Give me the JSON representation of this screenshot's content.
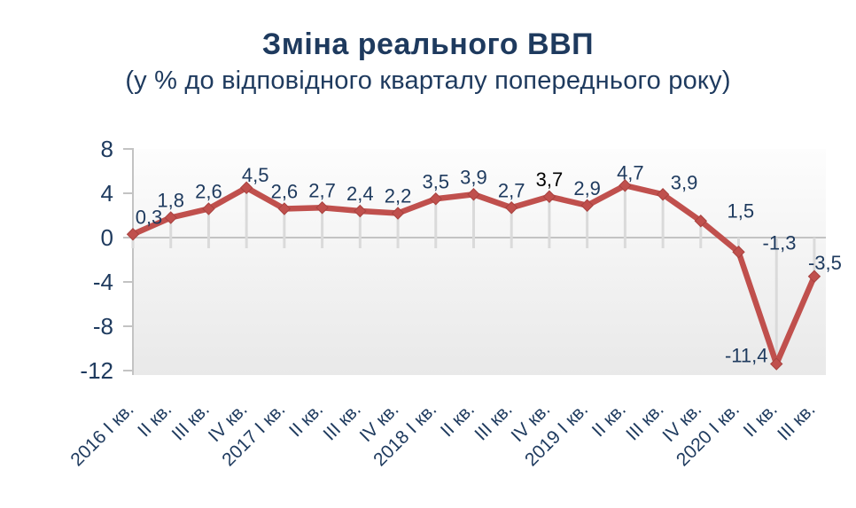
{
  "header": {
    "title": "Зміна реального ВВП",
    "subtitle": "(у % до відповідного кварталу попереднього року)"
  },
  "chart_data": {
    "type": "line",
    "title": "Зміна реального ВВП",
    "subtitle": "(у % до відповідного кварталу попереднього року)",
    "categories": [
      "2016 I кв.",
      "II кв.",
      "III кв.",
      "IV кв.",
      "2017 I кв.",
      "II кв.",
      "III кв.",
      "IV кв.",
      "2018 I кв.",
      "II кв.",
      "III кв.",
      "IV кв.",
      "2019 I кв.",
      "II кв.",
      "III кв.",
      "IV кв.",
      "2020 I кв.",
      "II кв.",
      "III кв."
    ],
    "values": [
      0.3,
      1.8,
      2.6,
      4.5,
      2.6,
      2.7,
      2.4,
      2.2,
      3.5,
      3.9,
      2.7,
      3.7,
      2.9,
      4.7,
      3.9,
      1.5,
      -1.3,
      -11.4,
      -3.5
    ],
    "point_labels": [
      "0,3",
      "1,8",
      "2,6",
      "4,5",
      "2,6",
      "2,7",
      "2,4",
      "2,2",
      "3,5",
      "3,9",
      "2,7",
      "3,7",
      "2,9",
      "4,7",
      "3,9",
      "1,5",
      "-1,3",
      "-11,4",
      "-3,5"
    ],
    "xlabel": "",
    "ylabel": "",
    "ylim": [
      -12,
      8
    ],
    "yticks": [
      8,
      4,
      0,
      -4,
      -8,
      -12
    ],
    "grid": false,
    "legend": "none",
    "marker": "diamond",
    "x_label_rotation_deg": 45,
    "colors": {
      "line": "#c0504d",
      "marker_edge": "#a8423f",
      "text": "#1e3a5e",
      "label_text": "#1e3a5e",
      "label_text_override": {
        "11": "#000000"
      },
      "title_text": "#1e3a5e",
      "axis": "#c3c3c3",
      "droplines": "#dadada",
      "plot_bg_top": "#fdfdfd",
      "plot_bg_bottom": "#e9e9e9"
    }
  }
}
